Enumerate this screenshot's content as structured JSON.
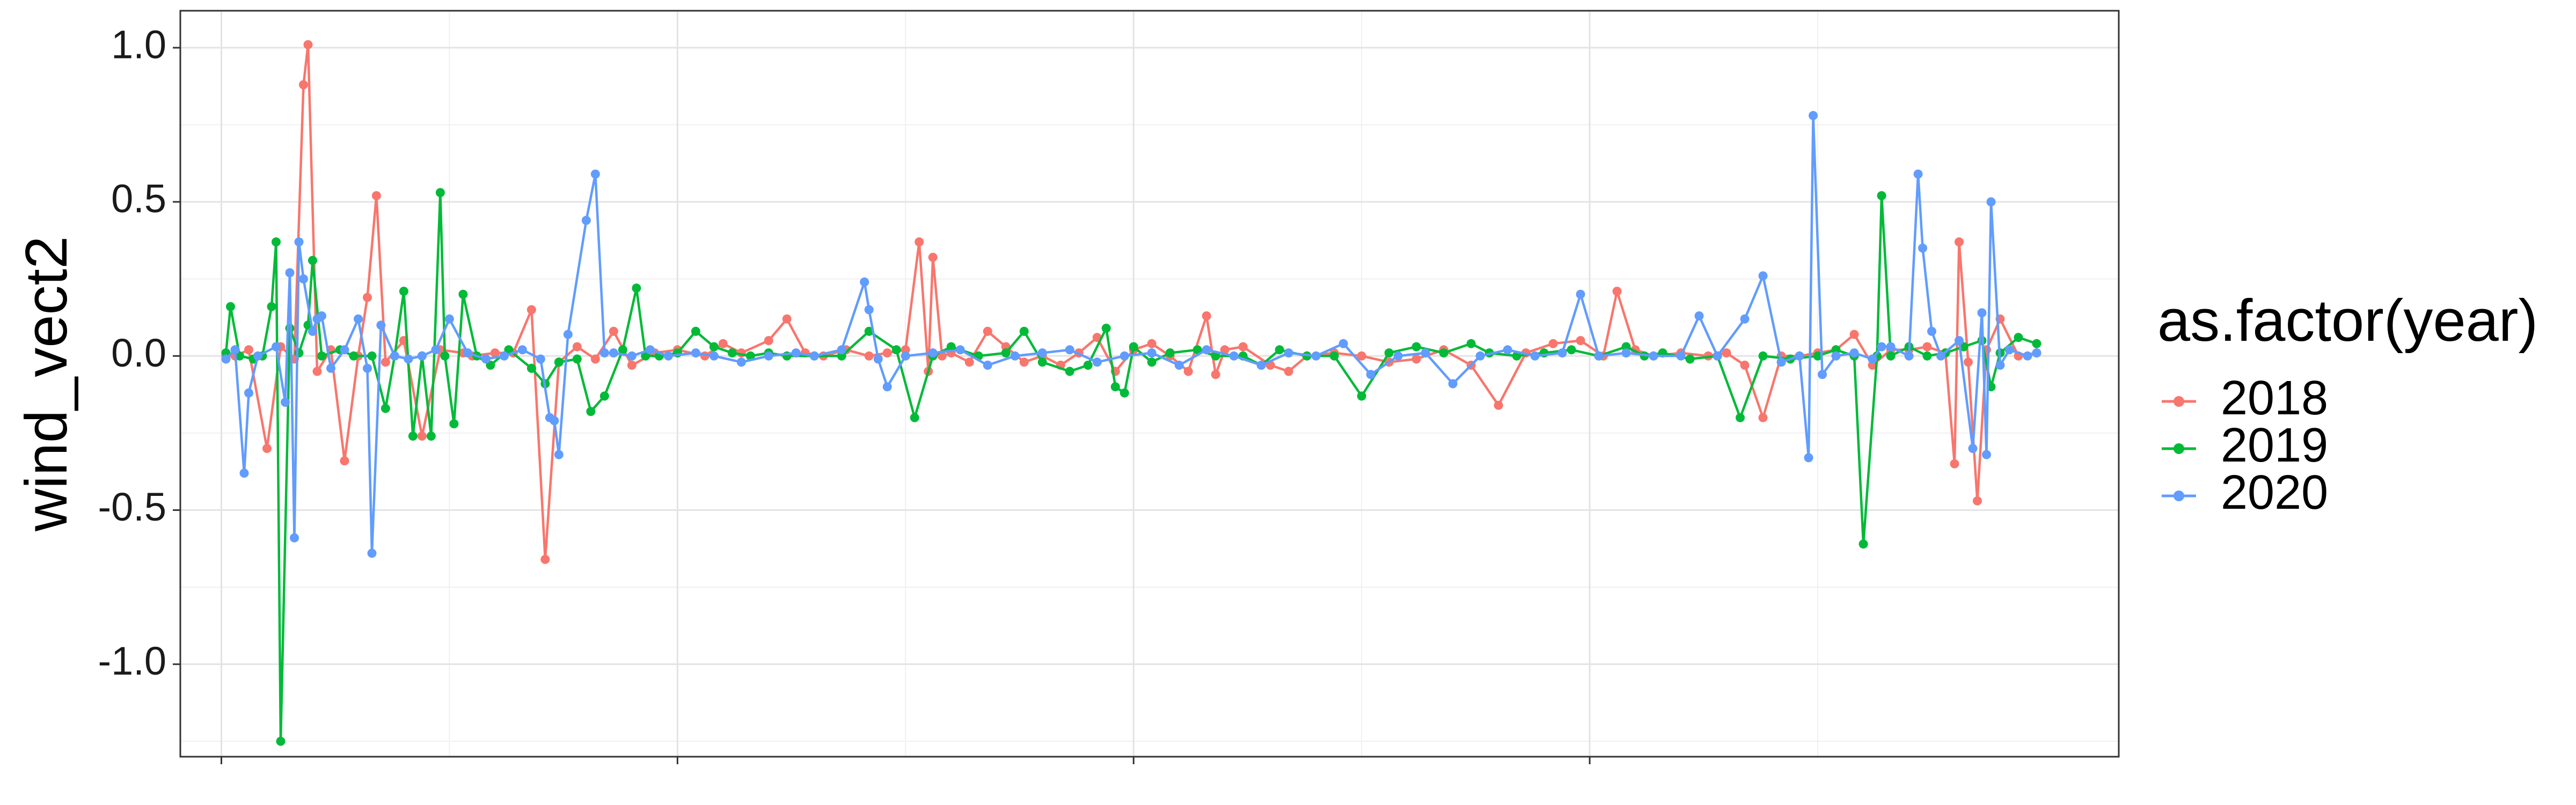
{
  "chart_data": {
    "type": "line",
    "title": "",
    "xlabel": "",
    "ylabel": "wind_vect2",
    "xlim": [
      -9,
      416
    ],
    "ylim": [
      -1.3,
      1.12
    ],
    "y_ticks": [
      1.0,
      0.5,
      0.0,
      -0.5,
      -1.0
    ],
    "y_tick_labels": [
      "1.0",
      "0.5",
      "0.0",
      "-0.5",
      "-1.0"
    ],
    "x_ticks": [
      0,
      100,
      200,
      300
    ],
    "grid": true,
    "markers": true,
    "legend": {
      "title": "as.factor(year)",
      "position": "right"
    },
    "series": [
      {
        "name": "2018",
        "color": "#F8766D",
        "points": [
          [
            1,
            0.0
          ],
          [
            3,
            0.0
          ],
          [
            6,
            0.02
          ],
          [
            10,
            -0.3
          ],
          [
            13,
            0.03
          ],
          [
            16,
            -0.01
          ],
          [
            18,
            0.88
          ],
          [
            19,
            1.01
          ],
          [
            21,
            -0.05
          ],
          [
            24,
            0.02
          ],
          [
            27,
            -0.34
          ],
          [
            30,
            0.0
          ],
          [
            32,
            0.19
          ],
          [
            34,
            0.52
          ],
          [
            36,
            -0.02
          ],
          [
            40,
            0.05
          ],
          [
            44,
            -0.26
          ],
          [
            48,
            0.02
          ],
          [
            53,
            0.01
          ],
          [
            55,
            0.0
          ],
          [
            60,
            0.01
          ],
          [
            64,
            0.01
          ],
          [
            68,
            0.15
          ],
          [
            71,
            -0.66
          ],
          [
            74,
            -0.02
          ],
          [
            78,
            0.03
          ],
          [
            82,
            -0.01
          ],
          [
            86,
            0.08
          ],
          [
            90,
            -0.03
          ],
          [
            95,
            0.01
          ],
          [
            100,
            0.02
          ],
          [
            106,
            0.0
          ],
          [
            110,
            0.04
          ],
          [
            114,
            0.01
          ],
          [
            120,
            0.05
          ],
          [
            124,
            0.12
          ],
          [
            128,
            0.01
          ],
          [
            132,
            0.0
          ],
          [
            137,
            0.02
          ],
          [
            142,
            0.0
          ],
          [
            146,
            0.01
          ],
          [
            150,
            0.02
          ],
          [
            153,
            0.37
          ],
          [
            155,
            -0.05
          ],
          [
            156,
            0.32
          ],
          [
            158,
            0.0
          ],
          [
            160,
            0.01
          ],
          [
            164,
            -0.02
          ],
          [
            168,
            0.08
          ],
          [
            172,
            0.03
          ],
          [
            176,
            -0.02
          ],
          [
            180,
            0.0
          ],
          [
            184,
            -0.03
          ],
          [
            188,
            0.01
          ],
          [
            192,
            0.06
          ],
          [
            196,
            -0.05
          ],
          [
            200,
            0.02
          ],
          [
            204,
            0.04
          ],
          [
            208,
            0.0
          ],
          [
            212,
            -0.05
          ],
          [
            216,
            0.13
          ],
          [
            218,
            -0.06
          ],
          [
            220,
            0.02
          ],
          [
            224,
            0.03
          ],
          [
            230,
            -0.03
          ],
          [
            234,
            -0.05
          ],
          [
            238,
            0.0
          ],
          [
            244,
            0.01
          ],
          [
            250,
            0.0
          ],
          [
            256,
            -0.02
          ],
          [
            262,
            -0.01
          ],
          [
            268,
            0.02
          ],
          [
            274,
            -0.03
          ],
          [
            280,
            -0.16
          ],
          [
            286,
            0.01
          ],
          [
            292,
            0.04
          ],
          [
            298,
            0.05
          ],
          [
            303,
            0.0
          ],
          [
            306,
            0.21
          ],
          [
            310,
            0.02
          ],
          [
            314,
            0.0
          ],
          [
            320,
            0.01
          ],
          [
            326,
            0.0
          ],
          [
            330,
            0.01
          ],
          [
            334,
            -0.03
          ],
          [
            338,
            -0.2
          ],
          [
            342,
            0.0
          ],
          [
            346,
            0.0
          ],
          [
            350,
            0.01
          ],
          [
            354,
            0.02
          ],
          [
            358,
            0.07
          ],
          [
            362,
            -0.03
          ],
          [
            366,
            0.02
          ],
          [
            370,
            0.02
          ],
          [
            374,
            0.03
          ],
          [
            378,
            0.01
          ],
          [
            380,
            -0.35
          ],
          [
            381,
            0.37
          ],
          [
            383,
            -0.02
          ],
          [
            385,
            -0.47
          ],
          [
            387,
            0.02
          ],
          [
            390,
            0.12
          ],
          [
            394,
            0.0
          ],
          [
            398,
            0.01
          ]
        ]
      },
      {
        "name": "2019",
        "color": "#00BA38",
        "points": [
          [
            1,
            0.01
          ],
          [
            2,
            0.16
          ],
          [
            4,
            0.0
          ],
          [
            7,
            -0.01
          ],
          [
            9,
            0.0
          ],
          [
            11,
            0.16
          ],
          [
            12,
            0.37
          ],
          [
            13,
            -1.25
          ],
          [
            15,
            0.09
          ],
          [
            17,
            0.01
          ],
          [
            19,
            0.1
          ],
          [
            20,
            0.31
          ],
          [
            22,
            0.0
          ],
          [
            26,
            0.02
          ],
          [
            29,
            0.0
          ],
          [
            33,
            0.0
          ],
          [
            36,
            -0.17
          ],
          [
            38,
            0.0
          ],
          [
            40,
            0.21
          ],
          [
            42,
            -0.26
          ],
          [
            44,
            0.0
          ],
          [
            46,
            -0.26
          ],
          [
            48,
            0.53
          ],
          [
            49,
            0.0
          ],
          [
            51,
            -0.22
          ],
          [
            53,
            0.2
          ],
          [
            56,
            0.0
          ],
          [
            59,
            -0.03
          ],
          [
            63,
            0.02
          ],
          [
            68,
            -0.04
          ],
          [
            71,
            -0.09
          ],
          [
            74,
            -0.02
          ],
          [
            78,
            -0.01
          ],
          [
            81,
            -0.18
          ],
          [
            84,
            -0.13
          ],
          [
            88,
            0.02
          ],
          [
            91,
            0.22
          ],
          [
            93,
            0.0
          ],
          [
            96,
            0.0
          ],
          [
            100,
            0.01
          ],
          [
            104,
            0.08
          ],
          [
            108,
            0.03
          ],
          [
            112,
            0.01
          ],
          [
            116,
            0.0
          ],
          [
            120,
            0.01
          ],
          [
            124,
            0.0
          ],
          [
            130,
            0.0
          ],
          [
            136,
            0.0
          ],
          [
            142,
            0.08
          ],
          [
            148,
            0.02
          ],
          [
            152,
            -0.2
          ],
          [
            156,
            0.0
          ],
          [
            160,
            0.03
          ],
          [
            166,
            0.0
          ],
          [
            172,
            0.01
          ],
          [
            176,
            0.08
          ],
          [
            180,
            -0.02
          ],
          [
            186,
            -0.05
          ],
          [
            190,
            -0.03
          ],
          [
            194,
            0.09
          ],
          [
            196,
            -0.1
          ],
          [
            198,
            -0.12
          ],
          [
            200,
            0.03
          ],
          [
            204,
            -0.02
          ],
          [
            208,
            0.01
          ],
          [
            214,
            0.02
          ],
          [
            218,
            0.0
          ],
          [
            224,
            0.0
          ],
          [
            228,
            -0.03
          ],
          [
            232,
            0.02
          ],
          [
            238,
            0.0
          ],
          [
            244,
            0.0
          ],
          [
            250,
            -0.13
          ],
          [
            256,
            0.01
          ],
          [
            262,
            0.03
          ],
          [
            268,
            0.01
          ],
          [
            274,
            0.04
          ],
          [
            278,
            0.01
          ],
          [
            284,
            0.0
          ],
          [
            290,
            0.01
          ],
          [
            296,
            0.02
          ],
          [
            302,
            0.0
          ],
          [
            308,
            0.03
          ],
          [
            312,
            0.0
          ],
          [
            316,
            0.01
          ],
          [
            322,
            -0.01
          ],
          [
            328,
            0.0
          ],
          [
            333,
            -0.2
          ],
          [
            338,
            0.0
          ],
          [
            344,
            -0.01
          ],
          [
            350,
            0.0
          ],
          [
            354,
            0.02
          ],
          [
            358,
            0.0
          ],
          [
            360,
            -0.61
          ],
          [
            363,
            0.0
          ],
          [
            364,
            0.52
          ],
          [
            366,
            0.0
          ],
          [
            370,
            0.03
          ],
          [
            374,
            0.0
          ],
          [
            378,
            0.01
          ],
          [
            382,
            0.03
          ],
          [
            386,
            0.05
          ],
          [
            388,
            -0.1
          ],
          [
            390,
            0.01
          ],
          [
            394,
            0.06
          ],
          [
            398,
            0.04
          ]
        ]
      },
      {
        "name": "2020",
        "color": "#619CFF",
        "points": [
          [
            1,
            -0.01
          ],
          [
            3,
            0.02
          ],
          [
            5,
            -0.38
          ],
          [
            6,
            -0.12
          ],
          [
            8,
            0.0
          ],
          [
            12,
            0.03
          ],
          [
            14,
            -0.15
          ],
          [
            15,
            0.27
          ],
          [
            16,
            -0.59
          ],
          [
            17,
            0.37
          ],
          [
            18,
            0.25
          ],
          [
            20,
            0.08
          ],
          [
            21,
            0.12
          ],
          [
            22,
            0.13
          ],
          [
            24,
            -0.04
          ],
          [
            27,
            0.02
          ],
          [
            30,
            0.12
          ],
          [
            32,
            -0.04
          ],
          [
            33,
            -0.64
          ],
          [
            35,
            0.1
          ],
          [
            38,
            0.0
          ],
          [
            41,
            -0.01
          ],
          [
            44,
            0.0
          ],
          [
            47,
            0.02
          ],
          [
            50,
            0.12
          ],
          [
            54,
            0.01
          ],
          [
            58,
            -0.01
          ],
          [
            62,
            0.0
          ],
          [
            66,
            0.02
          ],
          [
            70,
            -0.01
          ],
          [
            72,
            -0.2
          ],
          [
            73,
            -0.21
          ],
          [
            74,
            -0.32
          ],
          [
            76,
            0.07
          ],
          [
            80,
            0.44
          ],
          [
            82,
            0.59
          ],
          [
            84,
            0.01
          ],
          [
            86,
            0.01
          ],
          [
            90,
            0.0
          ],
          [
            94,
            0.02
          ],
          [
            98,
            0.0
          ],
          [
            104,
            0.01
          ],
          [
            108,
            0.0
          ],
          [
            114,
            -0.02
          ],
          [
            120,
            0.0
          ],
          [
            126,
            0.01
          ],
          [
            130,
            0.0
          ],
          [
            136,
            0.02
          ],
          [
            141,
            0.24
          ],
          [
            142,
            0.15
          ],
          [
            144,
            -0.01
          ],
          [
            146,
            -0.1
          ],
          [
            150,
            0.0
          ],
          [
            156,
            0.01
          ],
          [
            162,
            0.02
          ],
          [
            168,
            -0.03
          ],
          [
            174,
            0.0
          ],
          [
            180,
            0.01
          ],
          [
            186,
            0.02
          ],
          [
            192,
            -0.02
          ],
          [
            198,
            0.0
          ],
          [
            204,
            0.01
          ],
          [
            210,
            -0.03
          ],
          [
            216,
            0.02
          ],
          [
            222,
            0.0
          ],
          [
            228,
            -0.03
          ],
          [
            234,
            0.01
          ],
          [
            240,
            0.0
          ],
          [
            246,
            0.04
          ],
          [
            252,
            -0.06
          ],
          [
            258,
            0.0
          ],
          [
            264,
            0.01
          ],
          [
            270,
            -0.09
          ],
          [
            276,
            0.0
          ],
          [
            282,
            0.02
          ],
          [
            288,
            0.0
          ],
          [
            294,
            0.01
          ],
          [
            298,
            0.2
          ],
          [
            302,
            0.0
          ],
          [
            308,
            0.01
          ],
          [
            314,
            0.0
          ],
          [
            320,
            0.0
          ],
          [
            324,
            0.13
          ],
          [
            328,
            0.0
          ],
          [
            334,
            0.12
          ],
          [
            338,
            0.26
          ],
          [
            342,
            -0.02
          ],
          [
            346,
            0.0
          ],
          [
            348,
            -0.33
          ],
          [
            349,
            0.78
          ],
          [
            351,
            -0.06
          ],
          [
            354,
            0.0
          ],
          [
            358,
            0.01
          ],
          [
            362,
            -0.01
          ],
          [
            364,
            0.03
          ],
          [
            366,
            0.03
          ],
          [
            370,
            0.0
          ],
          [
            372,
            0.59
          ],
          [
            373,
            0.35
          ],
          [
            375,
            0.08
          ],
          [
            377,
            0.0
          ],
          [
            381,
            0.05
          ],
          [
            384,
            -0.3
          ],
          [
            386,
            0.14
          ],
          [
            387,
            -0.32
          ],
          [
            388,
            0.5
          ],
          [
            390,
            -0.03
          ],
          [
            392,
            0.02
          ],
          [
            396,
            0.0
          ],
          [
            398,
            0.01
          ]
        ]
      }
    ]
  }
}
